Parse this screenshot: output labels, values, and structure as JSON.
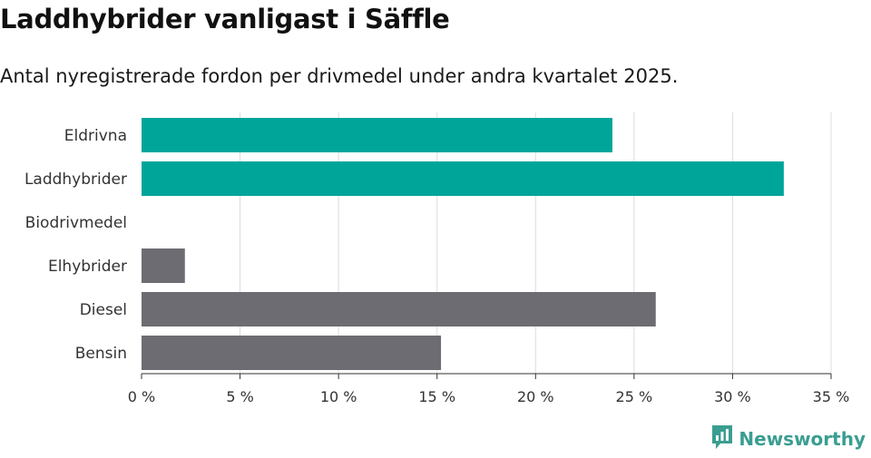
{
  "title": "Laddhybrider vanligast i Säffle",
  "subtitle": "Antal nyregistrerade fordon per drivmedel under andra kvartalet 2025.",
  "brand": {
    "name": "Newsworthy",
    "icon": "newsworthy-logo-icon",
    "color": "#3a9e91"
  },
  "colors": {
    "highlight": "#00a59a",
    "default": "#6c6c72",
    "grid": "#dcdcdc",
    "axis": "#333333"
  },
  "chart_data": {
    "type": "bar",
    "orientation": "horizontal",
    "categories": [
      "Eldrivna",
      "Laddhybrider",
      "Biodrivmedel",
      "Elhybrider",
      "Diesel",
      "Bensin"
    ],
    "values": [
      23.9,
      32.6,
      0,
      2.2,
      26.1,
      15.2
    ],
    "highlight": [
      true,
      true,
      false,
      false,
      false,
      false
    ],
    "xlim": [
      0,
      35
    ],
    "xticks": [
      0,
      5,
      10,
      15,
      20,
      25,
      30,
      35
    ],
    "tick_format": "{v} %",
    "grid": true
  }
}
